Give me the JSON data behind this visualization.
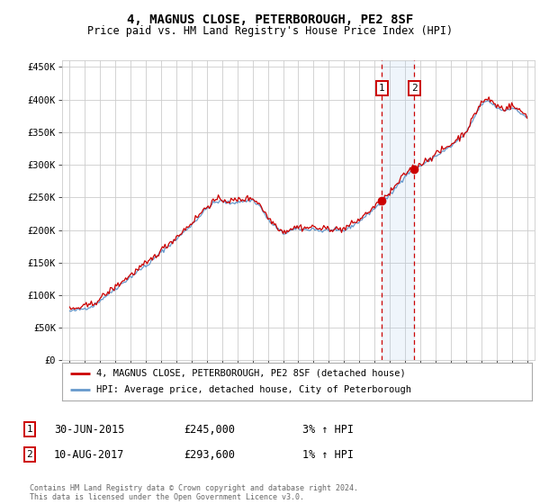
{
  "title": "4, MAGNUS CLOSE, PETERBOROUGH, PE2 8SF",
  "subtitle": "Price paid vs. HM Land Registry's House Price Index (HPI)",
  "ylabel_ticks": [
    "£0",
    "£50K",
    "£100K",
    "£150K",
    "£200K",
    "£250K",
    "£300K",
    "£350K",
    "£400K",
    "£450K"
  ],
  "ylabel_values": [
    0,
    50000,
    100000,
    150000,
    200000,
    250000,
    300000,
    350000,
    400000,
    450000
  ],
  "ylim": [
    0,
    460000
  ],
  "xlim_start": 1994.5,
  "xlim_end": 2025.5,
  "background_color": "#ffffff",
  "grid_color": "#cccccc",
  "sale1_date": 2015.49,
  "sale2_date": 2017.6,
  "sale1_price": 245000,
  "sale2_price": 293600,
  "dashed_line_color": "#cc0000",
  "legend1_label": "4, MAGNUS CLOSE, PETERBOROUGH, PE2 8SF (detached house)",
  "legend2_label": "HPI: Average price, detached house, City of Peterborough",
  "note1_date": "30-JUN-2015",
  "note1_price": "£245,000",
  "note1_hpi": "3% ↑ HPI",
  "note2_date": "10-AUG-2017",
  "note2_price": "£293,600",
  "note2_hpi": "1% ↑ HPI",
  "footer": "Contains HM Land Registry data © Crown copyright and database right 2024.\nThis data is licensed under the Open Government Licence v3.0.",
  "line_color_red": "#cc0000",
  "line_color_blue": "#6699cc"
}
